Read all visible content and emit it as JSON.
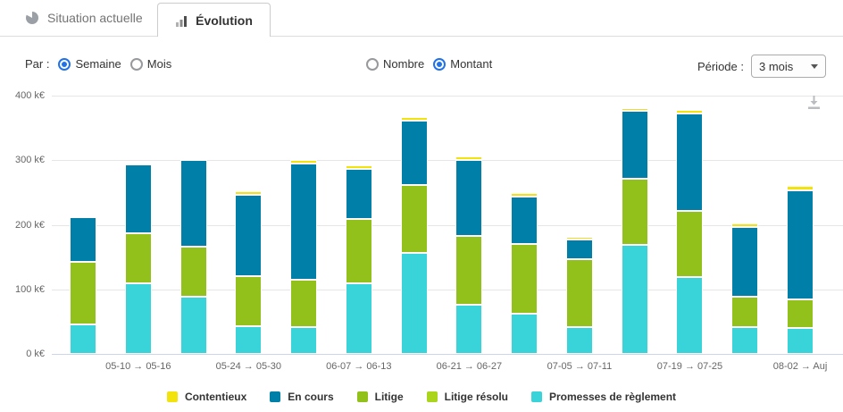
{
  "tabs": {
    "situation": {
      "label": "Situation actuelle"
    },
    "evolution": {
      "label": "Évolution"
    }
  },
  "controls": {
    "par_label": "Par :",
    "par_options": [
      {
        "label": "Semaine",
        "selected": true
      },
      {
        "label": "Mois",
        "selected": false
      }
    ],
    "measure_options": [
      {
        "label": "Nombre",
        "selected": false
      },
      {
        "label": "Montant",
        "selected": true
      }
    ],
    "periode_label": "Période :",
    "periode_value": "3 mois"
  },
  "chart_data": {
    "type": "bar",
    "stacked": true,
    "unit": "k€",
    "ylim": [
      0,
      400
    ],
    "ytick_interval": 100,
    "ytick_labels": [
      "0 k€",
      "100 k€",
      "200 k€",
      "300 k€",
      "400 k€"
    ],
    "grid": true,
    "legend_position": "bottom",
    "categories": [
      "",
      "05-10 → 05-16",
      "",
      "05-24 → 05-30",
      "",
      "06-07 → 06-13",
      "",
      "06-21 → 06-27",
      "",
      "07-05 → 07-11",
      "",
      "07-19 → 07-25",
      "",
      "08-02 → Auj"
    ],
    "series": [
      {
        "name": "Promesses de règlement",
        "color": "#38d4d9",
        "values": [
          45,
          110,
          88,
          43,
          41,
          109,
          157,
          76,
          62,
          41,
          169,
          119,
          41,
          40
        ]
      },
      {
        "name": "Litige résolu",
        "color": "#abd41c",
        "values": [
          0,
          0,
          0,
          0,
          0,
          0,
          0,
          0,
          0,
          0,
          0,
          0,
          0,
          0
        ]
      },
      {
        "name": "Litige",
        "color": "#93c11c",
        "values": [
          97,
          77,
          78,
          77,
          74,
          100,
          105,
          107,
          108,
          106,
          102,
          102,
          47,
          44
        ]
      },
      {
        "name": "En cours",
        "color": "#0080a8",
        "values": [
          70,
          107,
          134,
          127,
          180,
          77,
          99,
          117,
          73,
          30,
          105,
          152,
          108,
          170
        ]
      },
      {
        "name": "Contentieux",
        "color": "#f3e30c",
        "values": [
          3,
          0,
          0,
          5,
          5,
          6,
          6,
          6,
          6,
          5,
          5,
          5,
          6,
          6
        ]
      }
    ],
    "legend_order": [
      "Contentieux",
      "En cours",
      "Litige",
      "Litige résolu",
      "Promesses de règlement"
    ]
  }
}
